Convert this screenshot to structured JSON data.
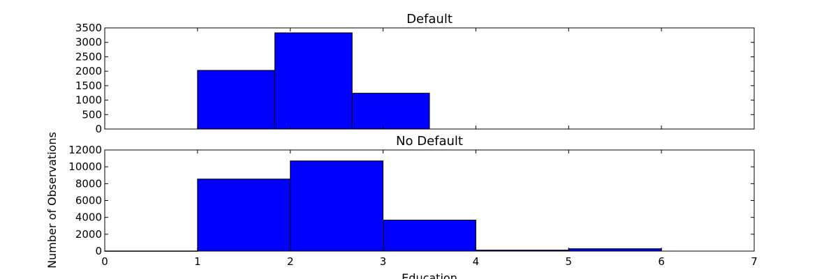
{
  "ylabel": "Number of Observations",
  "xlabel": "Education",
  "colors": {
    "bar": "#0000ff",
    "edge": "#000000"
  },
  "chart_data": [
    {
      "type": "bar",
      "title": "Default",
      "bins": [
        {
          "x0": 1.0,
          "x1": 1.8333,
          "value": 2030
        },
        {
          "x0": 1.8333,
          "x1": 2.6667,
          "value": 3330
        },
        {
          "x0": 2.6667,
          "x1": 3.5,
          "value": 1240
        }
      ],
      "xlim": [
        0,
        7
      ],
      "ylim": [
        0,
        3500
      ],
      "yticks": [
        0,
        500,
        1000,
        1500,
        2000,
        2500,
        3000,
        3500
      ],
      "xticks": [
        1,
        2,
        3,
        4,
        5,
        6
      ],
      "show_xtick_labels": false,
      "grid": false
    },
    {
      "type": "bar",
      "title": "No Default",
      "bins": [
        {
          "x0": 0,
          "x1": 1,
          "value": 15
        },
        {
          "x0": 1,
          "x1": 2,
          "value": 8550
        },
        {
          "x0": 2,
          "x1": 3,
          "value": 10700
        },
        {
          "x0": 3,
          "x1": 4,
          "value": 3680
        },
        {
          "x0": 4,
          "x1": 5,
          "value": 120
        },
        {
          "x0": 5,
          "x1": 6,
          "value": 280
        }
      ],
      "xlim": [
        0,
        7
      ],
      "ylim": [
        0,
        12000
      ],
      "yticks": [
        0,
        2000,
        4000,
        6000,
        8000,
        10000,
        12000
      ],
      "xticks": [
        0,
        1,
        2,
        3,
        4,
        5,
        6,
        7
      ],
      "show_xtick_labels": true,
      "grid": false
    }
  ]
}
